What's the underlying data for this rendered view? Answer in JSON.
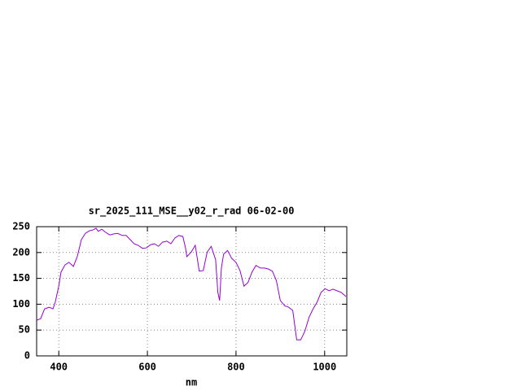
{
  "chart_data": {
    "type": "line",
    "title": "sr_2025_111_MSE__y02_r_rad 06-02-00",
    "x_label": "nm",
    "x": [
      350,
      359,
      368,
      378,
      387,
      392,
      400,
      405,
      414,
      423,
      433,
      442,
      451,
      460,
      469,
      478,
      484,
      489,
      497,
      506,
      515,
      524,
      533,
      543,
      552,
      561,
      570,
      579,
      589,
      598,
      607,
      616,
      625,
      634,
      644,
      653,
      662,
      671,
      680,
      686,
      689,
      699,
      708,
      717,
      726,
      735,
      744,
      754,
      759,
      763,
      767,
      772,
      781,
      790,
      800,
      809,
      818,
      827,
      836,
      845,
      855,
      864,
      873,
      882,
      891,
      900,
      910,
      919,
      928,
      937,
      946,
      955,
      965,
      974,
      983,
      992,
      1001,
      1010,
      1019,
      1028,
      1037,
      1048
    ],
    "series": [
      {
        "color": "#9400d3",
        "values": [
          69,
          72,
          91,
          94,
          91,
          104,
          135,
          162,
          176,
          181,
          173,
          193,
          225,
          237,
          242,
          244,
          247,
          241,
          245,
          239,
          234,
          236,
          237,
          233,
          233,
          225,
          217,
          214,
          208,
          209,
          215,
          217,
          212,
          220,
          222,
          217,
          228,
          233,
          231,
          209,
          192,
          201,
          214,
          164,
          165,
          201,
          212,
          186,
          123,
          107,
          170,
          197,
          204,
          189,
          181,
          165,
          135,
          142,
          162,
          175,
          170,
          170,
          168,
          164,
          146,
          107,
          97,
          94,
          88,
          31,
          31,
          47,
          75,
          91,
          104,
          123,
          130,
          126,
          129,
          126,
          123,
          115
        ]
      }
    ],
    "xlim": [
      350,
      1050
    ],
    "xticks": [
      400,
      600,
      800,
      1000
    ],
    "ylim": [
      0,
      250
    ],
    "yticks": [
      0,
      50,
      100,
      150,
      200,
      250
    ],
    "grid": true
  }
}
